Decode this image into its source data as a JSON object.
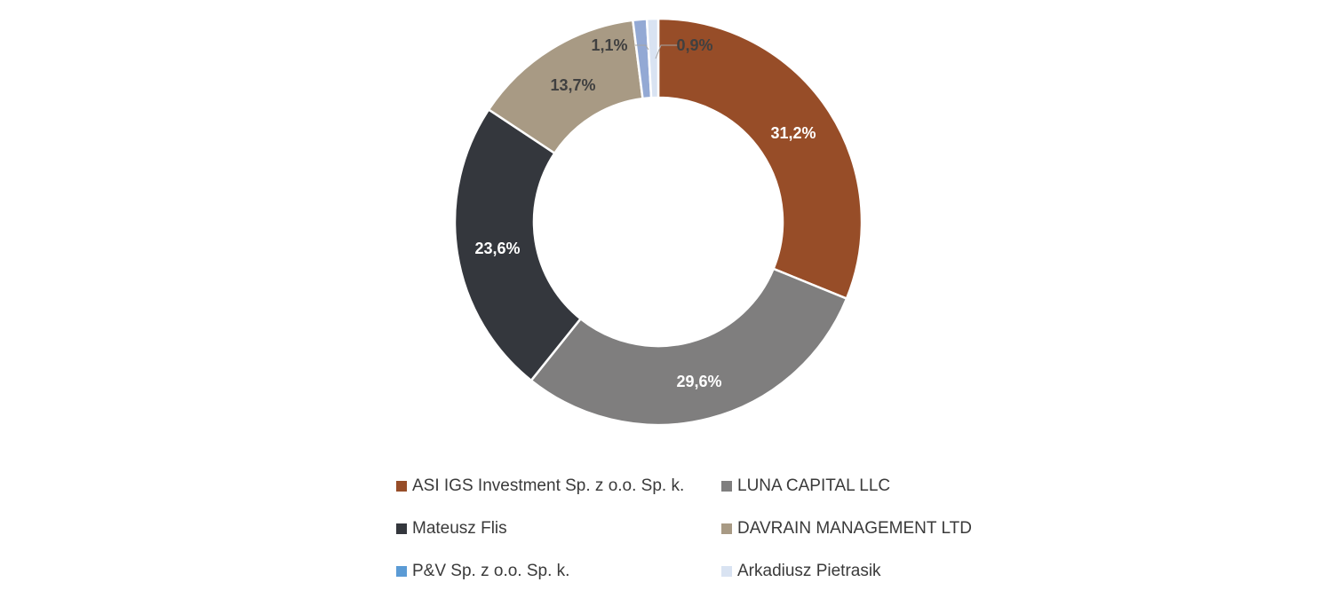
{
  "chart_data": {
    "type": "pie",
    "title": "",
    "slices": [
      {
        "name": "ASI IGS Investment Sp. z o.o. Sp. k.",
        "value": 31.2,
        "label": "31,2%",
        "color": "#974d28",
        "label_color": "#ffffff"
      },
      {
        "name": "LUNA CAPITAL LLC",
        "value": 29.6,
        "label": "29,6%",
        "color": "#7f7e7e",
        "label_color": "#ffffff"
      },
      {
        "name": "Mateusz Flis",
        "value": 23.6,
        "label": "23,6%",
        "color": "#34373d",
        "label_color": "#ffffff"
      },
      {
        "name": "DAVRAIN MANAGEMENT LTD",
        "value": 13.7,
        "label": "13,7%",
        "color": "#a89a84",
        "label_color": "#404040"
      },
      {
        "name": "P&V Sp. z o.o. Sp. k.",
        "value": 1.1,
        "label": "1,1%",
        "color": "#93a9d4",
        "label_color": "#404040"
      },
      {
        "name": "Arkadiusz Pietrasik",
        "value": 0.9,
        "label": "0,9%",
        "color": "#d9e3f2",
        "label_color": "#404040"
      }
    ],
    "legend_colors": [
      "#974d28",
      "#7f7e7e",
      "#34373d",
      "#a89a84",
      "#5b9bd5",
      "#d9e3f2"
    ],
    "donut": true,
    "legend_position": "bottom"
  }
}
